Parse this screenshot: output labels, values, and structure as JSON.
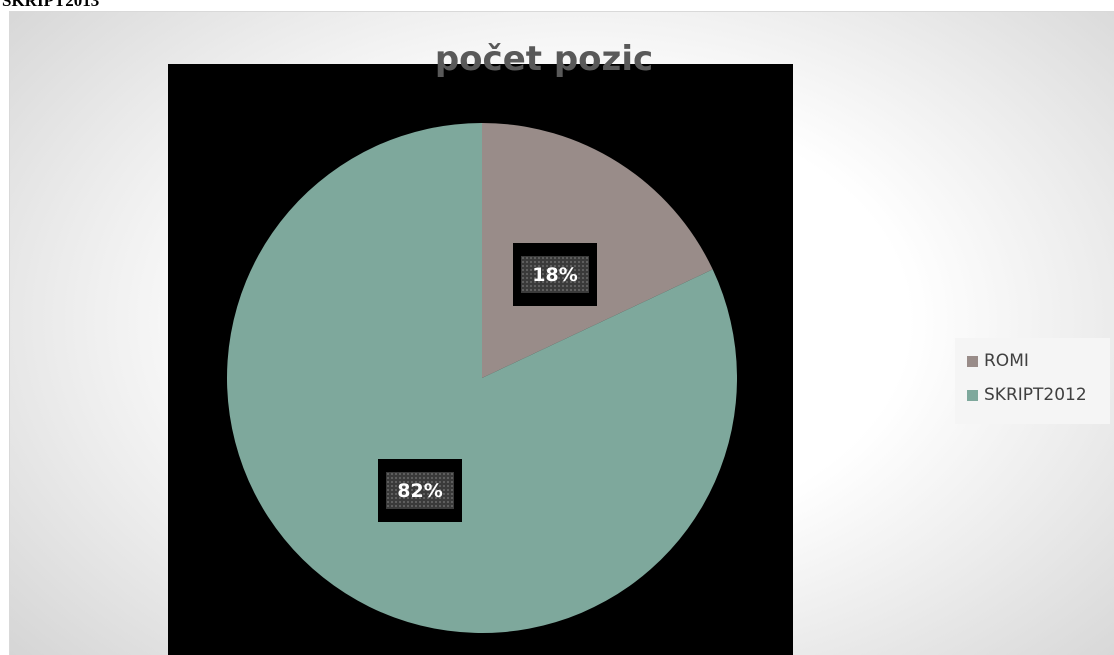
{
  "page": {
    "heading": "SKRIPT2013"
  },
  "chart_data": {
    "type": "pie",
    "title": "počet pozic",
    "categories": [
      "ROMI",
      "SKRIPT2012"
    ],
    "values": [
      18,
      82
    ],
    "data_labels": [
      "18%",
      "82%"
    ],
    "unit": "percent",
    "colors": [
      "#998c89",
      "#7ea89c"
    ],
    "legend_position": "right",
    "plot_background": "#000000"
  }
}
